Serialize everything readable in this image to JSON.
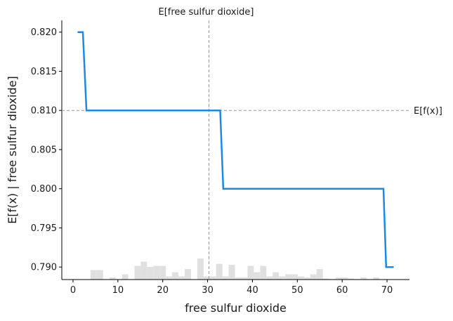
{
  "chart_data": {
    "type": "line",
    "xlabel": "free sulfur dioxide",
    "ylabel": "E[f(x) | free sulfur dioxide]",
    "xlim": [
      -2.5,
      75
    ],
    "ylim": [
      0.7884,
      0.8215
    ],
    "x_ticks": [
      0,
      10,
      20,
      30,
      40,
      50,
      60,
      70
    ],
    "x_tick_labels": [
      "0",
      "10",
      "20",
      "30",
      "40",
      "50",
      "60",
      "70"
    ],
    "y_ticks": [
      0.79,
      0.795,
      0.8,
      0.805,
      0.81,
      0.815,
      0.82
    ],
    "y_tick_labels": [
      "0.790",
      "0.795",
      "0.800",
      "0.805",
      "0.810",
      "0.815",
      "0.820"
    ],
    "grid": false,
    "series": [
      {
        "color": "#1e88e5",
        "x": [
          1,
          2.2,
          3,
          32.8,
          33.5,
          69.2,
          69.8,
          71.5
        ],
        "y": [
          0.82,
          0.82,
          0.81,
          0.81,
          0.8,
          0.8,
          0.79,
          0.79
        ]
      }
    ],
    "annotations": {
      "expected_feature": {
        "label": "E[free sulfur dioxide]",
        "x": 30.3
      },
      "expected_output": {
        "label": "E[f(x)]",
        "y": 0.81
      }
    },
    "histogram": {
      "color": "#e0e0e0",
      "bin_width": 1.4,
      "bin_starts": [
        3.9,
        5.3,
        8.1,
        10.9,
        13.7,
        15.1,
        16.5,
        17.9,
        19.3,
        20.7,
        22.1,
        23.5,
        24.9,
        27.7,
        29.1,
        30.5,
        31.9,
        33.3,
        34.7,
        36.1,
        37.5,
        38.9,
        40.3,
        41.7,
        43.1,
        44.5,
        45.9,
        47.3,
        48.7,
        50.1,
        51.5,
        52.9,
        54.3,
        55.7,
        58.5,
        59.9,
        61.3,
        64.1,
        66.9
      ],
      "counts": [
        9,
        9,
        2,
        5,
        13,
        17,
        12,
        13,
        13,
        3,
        7,
        3,
        10,
        20,
        3,
        3,
        15,
        3,
        14,
        2,
        2,
        13,
        7,
        13,
        3,
        7,
        3,
        5,
        5,
        3,
        2,
        5,
        10,
        1,
        2,
        2,
        1,
        2,
        2
      ]
    }
  }
}
